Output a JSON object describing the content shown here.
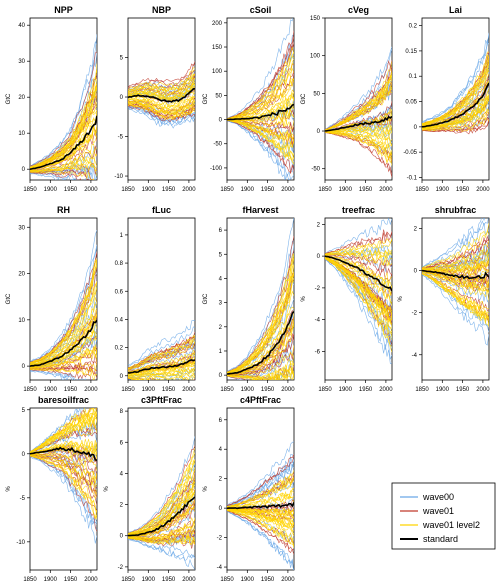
{
  "colors": {
    "wave00": "#6aa8e8",
    "wave01": "#c0392b",
    "wave01_level2": "#ffd400",
    "standard": "#000000"
  },
  "legend": {
    "placement": "bottom-right",
    "entries": [
      {
        "label": "wave00",
        "color": "#6aa8e8"
      },
      {
        "label": "wave01",
        "color": "#c0392b"
      },
      {
        "label": "wave01 level2",
        "color": "#ffd400"
      },
      {
        "label": "standard",
        "color": "#000000"
      }
    ]
  },
  "chart_data": [
    {
      "type": "line",
      "title": "NPP",
      "ylabel": "GtC",
      "xlim": [
        1850,
        2015
      ],
      "ylim": [
        -3,
        42
      ],
      "xticks": [
        "1850",
        "1900",
        "1950",
        "2000"
      ],
      "yticks": [
        0,
        10,
        20,
        30,
        40
      ],
      "x": [
        1850,
        1875,
        1900,
        1925,
        1950,
        1975,
        2000,
        2015
      ],
      "standard": [
        0,
        0.5,
        1.5,
        2.5,
        4.5,
        7.5,
        11,
        14
      ],
      "spread": [
        1,
        2,
        3,
        5,
        7,
        12,
        18,
        25
      ]
    },
    {
      "type": "line",
      "title": "NBP",
      "ylabel": "",
      "xlim": [
        1850,
        2015
      ],
      "ylim": [
        -10.5,
        10
      ],
      "xticks": [
        "1850",
        "1900",
        "1950",
        "2000"
      ],
      "yticks": [
        -10,
        -5,
        0,
        5
      ],
      "x": [
        1850,
        1875,
        1900,
        1925,
        1950,
        1975,
        2000,
        2015
      ],
      "standard": [
        0,
        0.2,
        0.1,
        -0.3,
        -0.6,
        -0.4,
        0.4,
        1.2
      ],
      "spread": [
        1.5,
        2,
        2.5,
        3,
        3,
        3,
        3.5,
        4
      ]
    },
    {
      "type": "line",
      "title": "cSoil",
      "ylabel": "GtC",
      "xlim": [
        1850,
        2015
      ],
      "ylim": [
        -125,
        210
      ],
      "xticks": [
        "1850",
        "1900",
        "1950",
        "2000"
      ],
      "yticks": [
        -100,
        -50,
        0,
        50,
        100,
        150,
        200
      ],
      "x": [
        1850,
        1875,
        1900,
        1925,
        1950,
        1975,
        2000,
        2015
      ],
      "standard": [
        0,
        1,
        2,
        4,
        8,
        14,
        22,
        32
      ],
      "spread": [
        2,
        10,
        25,
        45,
        70,
        100,
        140,
        170
      ]
    },
    {
      "type": "line",
      "title": "cVeg",
      "ylabel": "GtC",
      "xlim": [
        1850,
        2015
      ],
      "ylim": [
        -65,
        150
      ],
      "xticks": [
        "1850",
        "1900",
        "1950",
        "2000"
      ],
      "yticks": [
        -50,
        0,
        50,
        100,
        150
      ],
      "x": [
        1850,
        1875,
        1900,
        1925,
        1950,
        1975,
        2000,
        2015
      ],
      "standard": [
        0,
        2,
        5,
        8,
        10,
        12,
        16,
        20
      ],
      "spread": [
        2,
        8,
        15,
        25,
        35,
        50,
        70,
        90
      ]
    },
    {
      "type": "line",
      "title": "Lai",
      "ylabel": "",
      "xlim": [
        1850,
        2015
      ],
      "ylim": [
        -0.105,
        0.215
      ],
      "xticks": [
        "1850",
        "1900",
        "1950",
        "2000"
      ],
      "yticks": [
        -0.1,
        -0.05,
        0,
        0.05,
        0.1,
        0.15,
        0.2
      ],
      "x": [
        1850,
        1875,
        1900,
        1925,
        1950,
        1975,
        2000,
        2015
      ],
      "standard": [
        0,
        0.003,
        0.008,
        0.015,
        0.025,
        0.04,
        0.06,
        0.085
      ],
      "spread": [
        0.01,
        0.015,
        0.02,
        0.03,
        0.045,
        0.06,
        0.08,
        0.1
      ]
    },
    {
      "type": "line",
      "title": "RH",
      "ylabel": "GtC",
      "xlim": [
        1850,
        2015
      ],
      "ylim": [
        -3,
        32
      ],
      "xticks": [
        "1850",
        "1900",
        "1950",
        "2000"
      ],
      "yticks": [
        0,
        10,
        20,
        30
      ],
      "x": [
        1850,
        1875,
        1900,
        1925,
        1950,
        1975,
        2000,
        2015
      ],
      "standard": [
        0,
        0.3,
        1,
        2,
        3.5,
        5.5,
        8,
        10
      ],
      "spread": [
        1,
        1.5,
        2.5,
        4,
        6,
        9,
        13,
        18
      ]
    },
    {
      "type": "line",
      "title": "fLuc",
      "ylabel": "",
      "xlim": [
        1850,
        2015
      ],
      "ylim": [
        -0.03,
        1.12
      ],
      "xticks": [
        "1850",
        "1900",
        "1950",
        "2000"
      ],
      "yticks": [
        0,
        0.2,
        0.4,
        0.6,
        0.8,
        1.0
      ],
      "x": [
        1850,
        1875,
        1900,
        1925,
        1950,
        1975,
        2000,
        2015
      ],
      "standard": [
        0.02,
        0.03,
        0.05,
        0.06,
        0.06,
        0.08,
        0.1,
        0.12
      ],
      "spread": [
        0.05,
        0.08,
        0.12,
        0.15,
        0.18,
        0.2,
        0.22,
        0.25
      ]
    },
    {
      "type": "line",
      "title": "fHarvest",
      "ylabel": "GtC",
      "xlim": [
        1850,
        2015
      ],
      "ylim": [
        -0.2,
        6.5
      ],
      "xticks": [
        "1850",
        "1900",
        "1950",
        "2000"
      ],
      "yticks": [
        0,
        1,
        2,
        3,
        4,
        5,
        6
      ],
      "x": [
        1850,
        1875,
        1900,
        1925,
        1950,
        1975,
        2000,
        2015
      ],
      "standard": [
        0.05,
        0.1,
        0.25,
        0.45,
        0.8,
        1.3,
        2,
        2.6
      ],
      "spread": [
        0.1,
        0.25,
        0.5,
        0.9,
        1.4,
        2,
        2.8,
        3.5
      ]
    },
    {
      "type": "line",
      "title": "treefrac",
      "ylabel": "%",
      "xlim": [
        1850,
        2015
      ],
      "ylim": [
        -7.8,
        2.4
      ],
      "xticks": [
        "1850",
        "1900",
        "1950",
        "2000"
      ],
      "yticks": [
        -6,
        -4,
        -2,
        0,
        2
      ],
      "x": [
        1850,
        1875,
        1900,
        1925,
        1950,
        1975,
        2000,
        2015
      ],
      "standard": [
        0,
        -0.15,
        -0.4,
        -0.7,
        -1.1,
        -1.5,
        -1.9,
        -2.2
      ],
      "spread": [
        0.2,
        0.6,
        1.2,
        1.8,
        2.5,
        3.2,
        4,
        4.6
      ]
    },
    {
      "type": "line",
      "title": "shrubfrac",
      "ylabel": "%",
      "xlim": [
        1850,
        2015
      ],
      "ylim": [
        -5.2,
        2.5
      ],
      "xticks": [
        "1850",
        "1900",
        "1950",
        "2000"
      ],
      "yticks": [
        -4,
        -2,
        0,
        2
      ],
      "x": [
        1850,
        1875,
        1900,
        1925,
        1950,
        1975,
        2000,
        2015
      ],
      "standard": [
        0,
        -0.05,
        -0.15,
        -0.25,
        -0.3,
        -0.3,
        -0.25,
        -0.2
      ],
      "spread": [
        0.2,
        0.5,
        0.9,
        1.3,
        1.8,
        2.2,
        2.7,
        3.1
      ]
    },
    {
      "type": "line",
      "title": "baresoilfrac",
      "ylabel": "%",
      "xlim": [
        1850,
        2015
      ],
      "ylim": [
        -13.2,
        5.2
      ],
      "xticks": [
        "1850",
        "1900",
        "1950",
        "2000"
      ],
      "yticks": [
        -10,
        -5,
        0,
        5
      ],
      "x": [
        1850,
        1875,
        1900,
        1925,
        1950,
        1975,
        2000,
        2015
      ],
      "standard": [
        0,
        0.2,
        0.4,
        0.6,
        0.5,
        0.2,
        -0.2,
        -0.5
      ],
      "spread": [
        0.3,
        1,
        2,
        3,
        4.5,
        6,
        7.5,
        9
      ]
    },
    {
      "type": "line",
      "title": "c3PftFrac",
      "ylabel": "%",
      "xlim": [
        1850,
        2015
      ],
      "ylim": [
        -2.2,
        8.2
      ],
      "xticks": [
        "1850",
        "1900",
        "1950",
        "2000"
      ],
      "yticks": [
        -2,
        0,
        2,
        4,
        6,
        8
      ],
      "x": [
        1850,
        1875,
        1900,
        1925,
        1950,
        1975,
        2000,
        2015
      ],
      "standard": [
        0,
        0.05,
        0.2,
        0.45,
        0.9,
        1.5,
        2.1,
        2.6
      ],
      "spread": [
        0.2,
        0.4,
        0.8,
        1.2,
        1.8,
        2.5,
        3.3,
        4
      ]
    },
    {
      "type": "line",
      "title": "c4PftFrac",
      "ylabel": "%",
      "xlim": [
        1850,
        2015
      ],
      "ylim": [
        -4.2,
        6.8
      ],
      "xticks": [
        "1850",
        "1900",
        "1950",
        "2000"
      ],
      "yticks": [
        -4,
        -2,
        0,
        2,
        4,
        6
      ],
      "x": [
        1850,
        1875,
        1900,
        1925,
        1950,
        1975,
        2000,
        2015
      ],
      "standard": [
        0,
        0,
        0.05,
        0.08,
        0.1,
        0.15,
        0.2,
        0.25
      ],
      "spread": [
        0.2,
        0.5,
        0.9,
        1.4,
        2,
        2.6,
        3.2,
        3.8
      ]
    }
  ]
}
